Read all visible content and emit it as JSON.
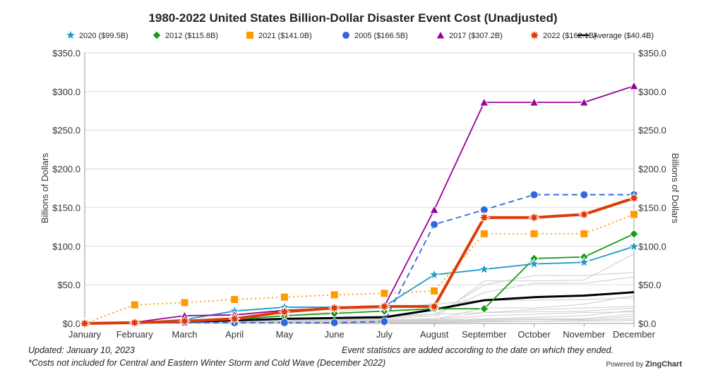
{
  "chart_data": {
    "type": "line",
    "title": "1980-2022 United States Billion-Dollar Disaster Event Cost (Unadjusted)",
    "ylabel": "Billions of Dollars",
    "ylabel_right": "Billions of Dollars",
    "ylim": [
      0,
      350
    ],
    "yticks": [
      "$0.0",
      "$50.0",
      "$100.0",
      "$150.0",
      "$200.0",
      "$250.0",
      "$300.0",
      "$350.0"
    ],
    "categories": [
      "January",
      "February",
      "March",
      "April",
      "May",
      "June",
      "July",
      "August",
      "September",
      "October",
      "November",
      "December"
    ],
    "grid": true,
    "legend_position": "top",
    "series": [
      {
        "name": "2020 ($99.5B)",
        "color": "#1a9bc8",
        "marker": "star",
        "dash": "solid",
        "values": [
          0,
          1,
          5,
          16,
          21,
          21,
          22,
          63,
          70,
          77,
          79,
          99.5
        ]
      },
      {
        "name": "2012 ($115.8B)",
        "color": "#1a9a1a",
        "marker": "diamond",
        "dash": "solid",
        "values": [
          0,
          1,
          2,
          5,
          10,
          13,
          16,
          19,
          19,
          84,
          86,
          115.8
        ]
      },
      {
        "name": "2021 ($141.0B)",
        "color": "#ff9900",
        "marker": "square",
        "dash": "dotted",
        "values": [
          0,
          24,
          27,
          31,
          34,
          37,
          39,
          42,
          116,
          116,
          116,
          141
        ]
      },
      {
        "name": "2005 ($166.5B)",
        "color": "#3366dd",
        "marker": "circle",
        "dash": "dashed",
        "values": [
          0,
          0.5,
          1,
          1,
          1,
          1,
          2.5,
          128,
          147,
          166.5,
          166.5,
          166.5
        ]
      },
      {
        "name": "2017 ($307.2B)",
        "color": "#990099",
        "marker": "triangle",
        "dash": "solid",
        "values": [
          0,
          1.5,
          10,
          11,
          17,
          20,
          22,
          147,
          286,
          286,
          286,
          307.2
        ]
      },
      {
        "name": "2022 ($162.1B)",
        "color": "#dd3a0a",
        "marker": "burst",
        "dash": "solid",
        "values": [
          0,
          1,
          3,
          6,
          15,
          20,
          22,
          22,
          137,
          137,
          141,
          162.1
        ]
      },
      {
        "name": "Average ($40.4B)",
        "color": "#000000",
        "marker": "none",
        "dash": "solid",
        "values": [
          0,
          1,
          2,
          4,
          6,
          7,
          8,
          18,
          30,
          34,
          36,
          40.4
        ]
      }
    ],
    "background_series": [
      [
        0,
        0,
        1,
        2,
        3,
        4,
        5,
        6,
        55,
        55,
        56,
        90
      ],
      [
        0,
        1,
        2,
        3,
        4,
        5,
        6,
        10,
        50,
        62,
        62,
        66
      ],
      [
        0,
        1,
        1,
        3,
        5,
        7,
        8,
        12,
        40,
        52,
        52,
        60
      ],
      [
        0,
        0,
        1,
        2,
        3,
        4,
        4,
        5,
        20,
        20,
        25,
        36
      ],
      [
        0,
        0,
        0,
        1,
        2,
        2,
        3,
        5,
        14,
        18,
        20,
        22
      ],
      [
        0,
        0,
        1,
        1,
        2,
        3,
        3,
        4,
        6,
        8,
        10,
        17
      ],
      [
        0,
        0,
        0,
        1,
        1,
        2,
        2,
        3,
        5,
        6,
        6,
        12
      ],
      [
        0,
        0,
        0,
        0,
        1,
        1,
        2,
        2,
        4,
        5,
        5,
        9
      ],
      [
        0,
        0,
        1,
        2,
        2,
        3,
        3,
        4,
        10,
        12,
        14,
        15
      ],
      [
        0,
        1,
        2,
        3,
        4,
        8,
        10,
        12,
        14,
        15,
        16,
        20
      ],
      [
        0,
        0,
        0,
        1,
        1,
        1,
        2,
        2,
        3,
        3,
        4,
        6
      ],
      [
        0,
        0,
        0,
        0,
        0,
        1,
        1,
        1,
        2,
        3,
        3,
        4
      ],
      [
        0,
        2,
        4,
        6,
        10,
        15,
        20,
        25,
        30,
        30,
        31,
        33
      ]
    ]
  },
  "notes": {
    "updated": "Updated: January 10, 2023",
    "costs": "*Costs not included for Central and Eastern Winter Storm and Cold Wave (December 2022)",
    "event_stats": "Event statistics are added according to the date on which they ended."
  },
  "powered_by": {
    "prefix": "Powered by",
    "brand": "ZingChart"
  }
}
